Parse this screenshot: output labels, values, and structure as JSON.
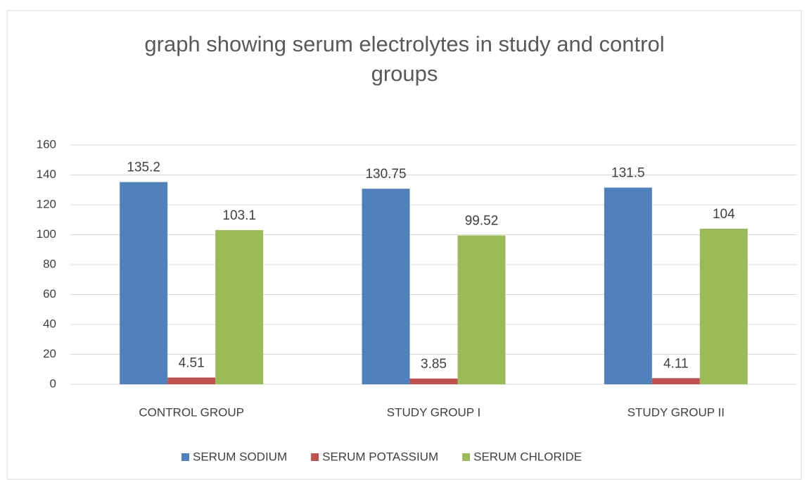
{
  "chart_data": {
    "type": "bar",
    "title": "graph showing serum electrolytes in study and control groups",
    "categories": [
      "CONTROL GROUP",
      "STUDY GROUP I",
      "STUDY GROUP II"
    ],
    "series": [
      {
        "name": "SERUM SODIUM",
        "color": "#4f81bd",
        "values": [
          135.2,
          130.75,
          131.5
        ]
      },
      {
        "name": "SERUM POTASSIUM",
        "color": "#c0504d",
        "values": [
          4.51,
          3.85,
          4.11
        ]
      },
      {
        "name": "SERUM CHLORIDE",
        "color": "#9bbb59",
        "values": [
          103.1,
          99.52,
          104
        ]
      }
    ],
    "ylim": [
      0,
      160
    ],
    "yticks": [
      0,
      20,
      40,
      60,
      80,
      100,
      120,
      140,
      160
    ],
    "grid": true,
    "legend": "bottom"
  }
}
